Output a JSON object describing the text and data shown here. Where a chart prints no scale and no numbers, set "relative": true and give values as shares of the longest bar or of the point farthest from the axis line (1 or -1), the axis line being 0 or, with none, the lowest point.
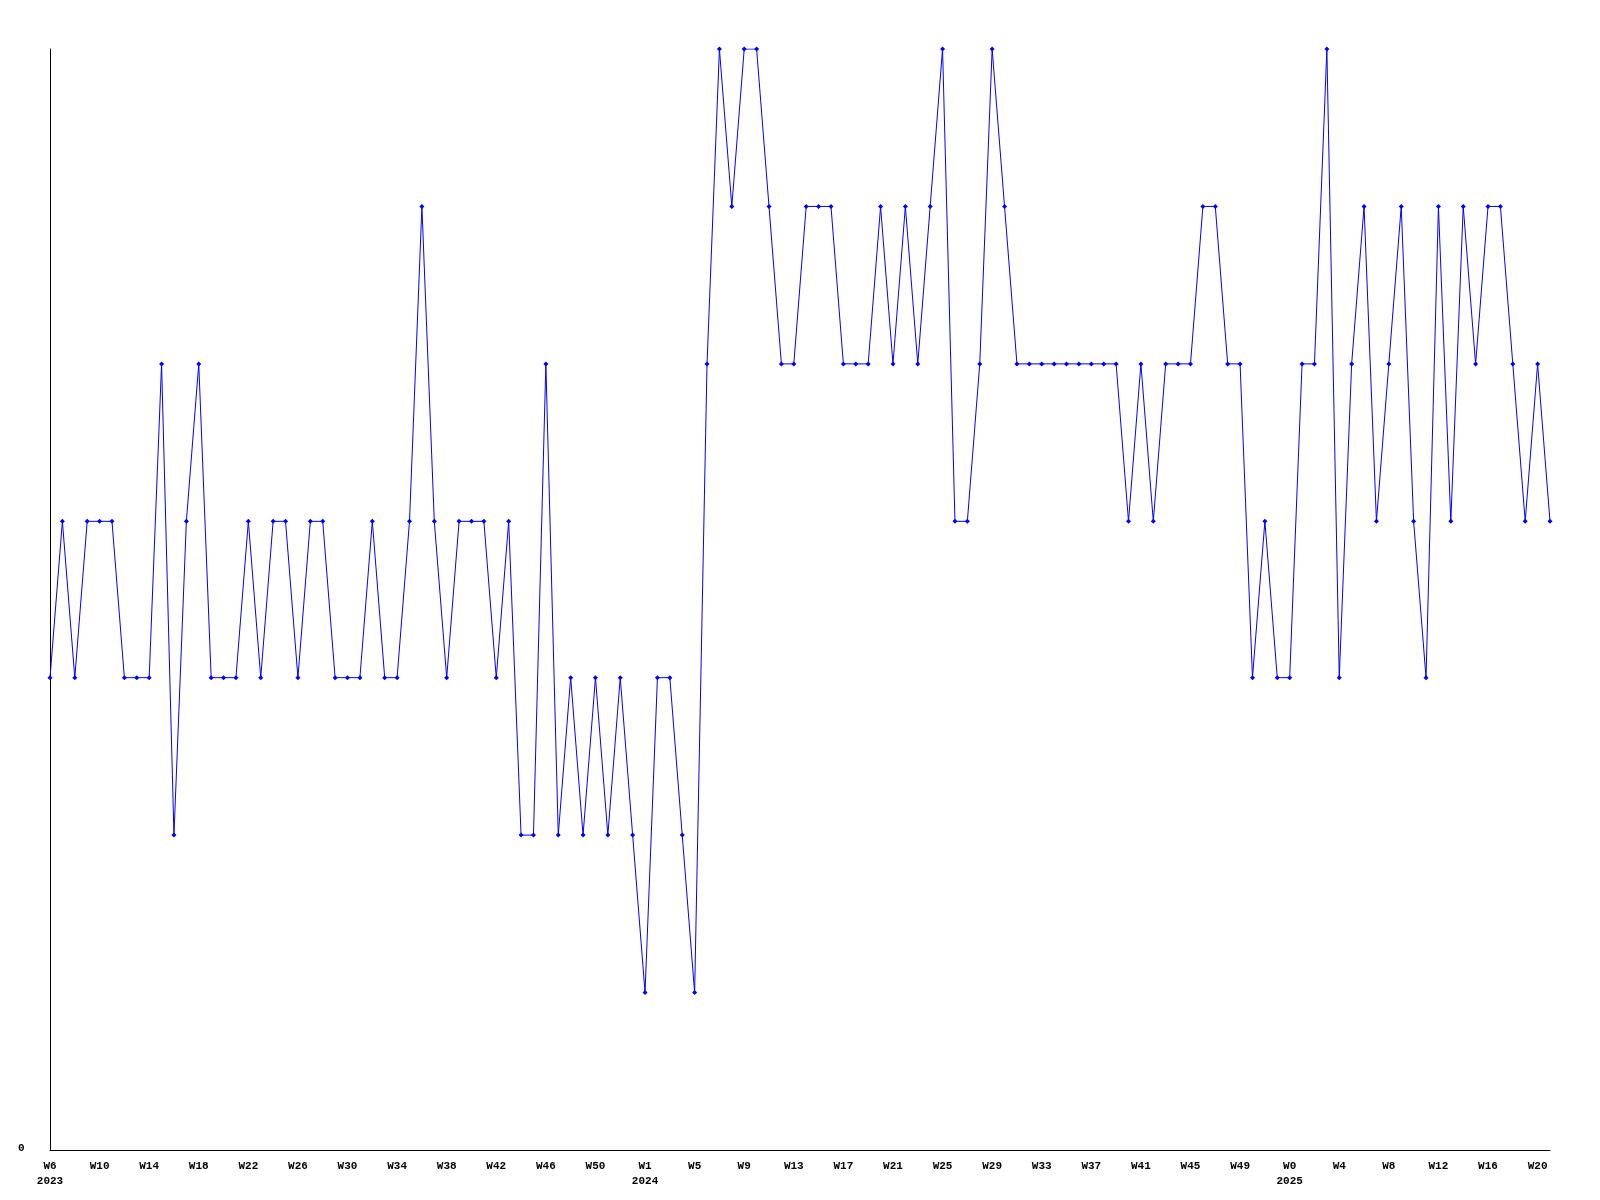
{
  "chart_data": {
    "type": "line",
    "relative": true,
    "marker": "diamond",
    "line_style": "solid",
    "annotations": [
      "0"
    ],
    "categories": [
      "W6\n2023",
      null,
      null,
      null,
      "W10",
      null,
      null,
      null,
      "W14",
      null,
      null,
      null,
      "W18",
      null,
      null,
      null,
      "W22",
      null,
      null,
      null,
      "W26",
      null,
      null,
      null,
      "W30",
      null,
      null,
      null,
      "W34",
      null,
      null,
      null,
      "W38",
      null,
      null,
      null,
      "W42",
      null,
      null,
      null,
      "W46",
      null,
      null,
      null,
      "W50",
      null,
      null,
      null,
      "W1\n2024",
      null,
      null,
      null,
      "W5",
      null,
      null,
      null,
      "W9",
      null,
      null,
      null,
      "W13",
      null,
      null,
      null,
      "W17",
      null,
      null,
      null,
      "W21",
      null,
      null,
      null,
      "W25",
      null,
      null,
      null,
      "W29",
      null,
      null,
      null,
      "W33",
      null,
      null,
      null,
      "W37",
      null,
      null,
      null,
      "W41",
      null,
      null,
      null,
      "W45",
      null,
      null,
      null,
      "W49",
      null,
      null,
      null,
      "W0\n2025",
      null,
      null,
      null,
      "W4",
      null,
      null,
      null,
      "W8",
      null,
      null,
      null,
      "W12",
      null,
      null,
      null,
      "W16",
      null,
      null,
      null,
      "W20",
      null
    ],
    "series": [
      {
        "color": "#0000ff",
        "values": [
          0.429,
          0.571,
          0.429,
          0.571,
          0.571,
          0.571,
          0.429,
          0.429,
          0.429,
          0.714,
          0.286,
          0.571,
          0.714,
          0.429,
          0.429,
          0.429,
          0.571,
          0.429,
          0.571,
          0.571,
          0.429,
          0.571,
          0.571,
          0.429,
          0.429,
          0.429,
          0.571,
          0.429,
          0.429,
          0.571,
          0.857,
          0.571,
          0.429,
          0.571,
          0.571,
          0.571,
          0.429,
          0.571,
          0.286,
          0.286,
          0.714,
          0.286,
          0.429,
          0.286,
          0.429,
          0.286,
          0.429,
          0.286,
          0.143,
          0.429,
          0.429,
          0.286,
          0.143,
          0.714,
          1,
          0.857,
          1,
          1,
          0.857,
          0.714,
          0.714,
          0.857,
          0.857,
          0.857,
          0.714,
          0.714,
          0.714,
          0.857,
          0.714,
          0.857,
          0.714,
          0.857,
          1,
          0.571,
          0.571,
          0.714,
          1,
          0.857,
          0.714,
          0.714,
          0.714,
          0.714,
          0.714,
          0.714,
          0.714,
          0.714,
          0.714,
          0.571,
          0.714,
          0.571,
          0.714,
          0.714,
          0.714,
          0.857,
          0.857,
          0.714,
          0.714,
          0.429,
          0.571,
          0.429,
          0.429,
          0.714,
          0.714,
          1,
          0.429,
          0.714,
          0.857,
          0.571,
          0.714,
          0.857,
          0.571,
          0.429,
          0.857,
          0.571,
          0.857,
          0.714,
          0.857,
          0.857,
          0.714,
          0.571,
          0.714,
          0.571
        ]
      }
    ]
  }
}
